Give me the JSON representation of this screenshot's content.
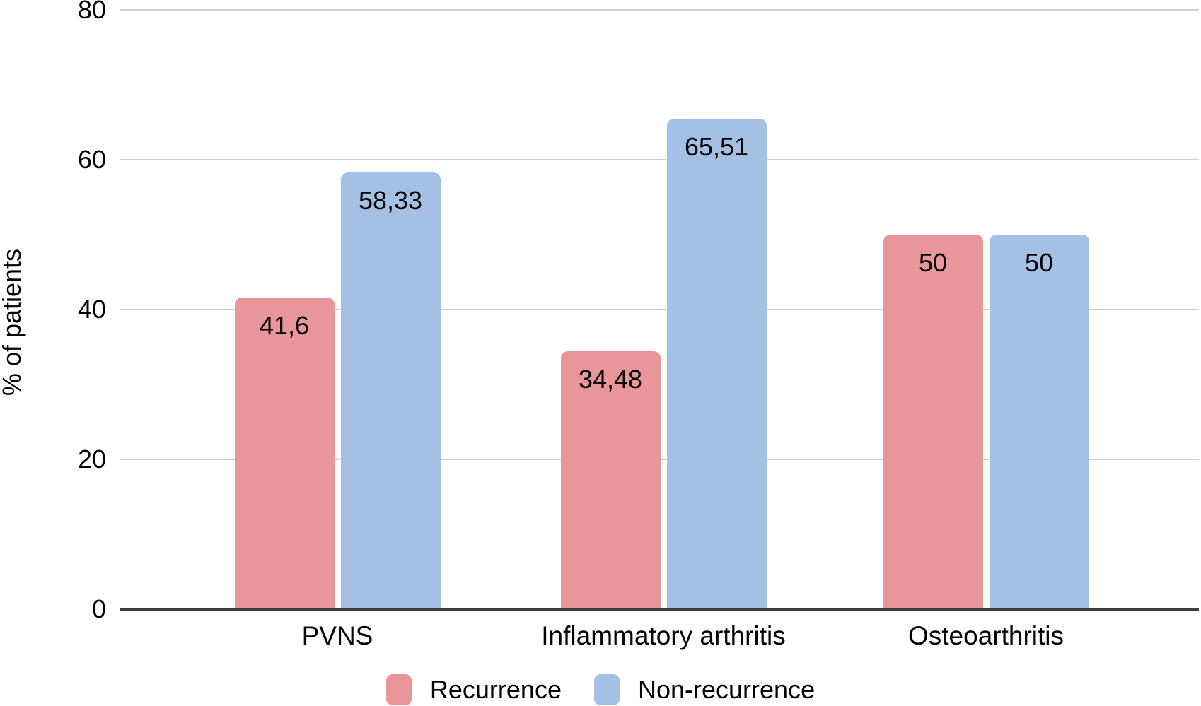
{
  "chart_data": {
    "type": "bar",
    "title": "",
    "categories": [
      "PVNS",
      "Inflammatory arthritis",
      "Osteoarthritis"
    ],
    "series": [
      {
        "name": "Recurrence",
        "color": "#e9969a",
        "values": [
          41.6,
          34.48,
          50
        ],
        "data_labels": [
          "41,6",
          "34,48",
          "50"
        ]
      },
      {
        "name": "Non-recurrence",
        "color": "#a4c1e5",
        "values": [
          58.33,
          65.51,
          50
        ],
        "data_labels": [
          "58,33",
          "65,51",
          "50"
        ]
      }
    ],
    "xlabel": "",
    "ylabel": "% of patients",
    "ylim": [
      0,
      80
    ],
    "yticks": [
      0,
      20,
      40,
      60,
      80
    ],
    "ytick_labels": [
      "0",
      "20",
      "40",
      "60",
      "80"
    ],
    "grid": "horizontal",
    "legend_position": "bottom"
  },
  "colors": {
    "background": "#ffffff",
    "gridline": "#cdcdcd",
    "axis": "#3d3d3d",
    "text": "#000000",
    "recurrence": "#e9969a",
    "non_recurrence": "#a4c1e5"
  }
}
